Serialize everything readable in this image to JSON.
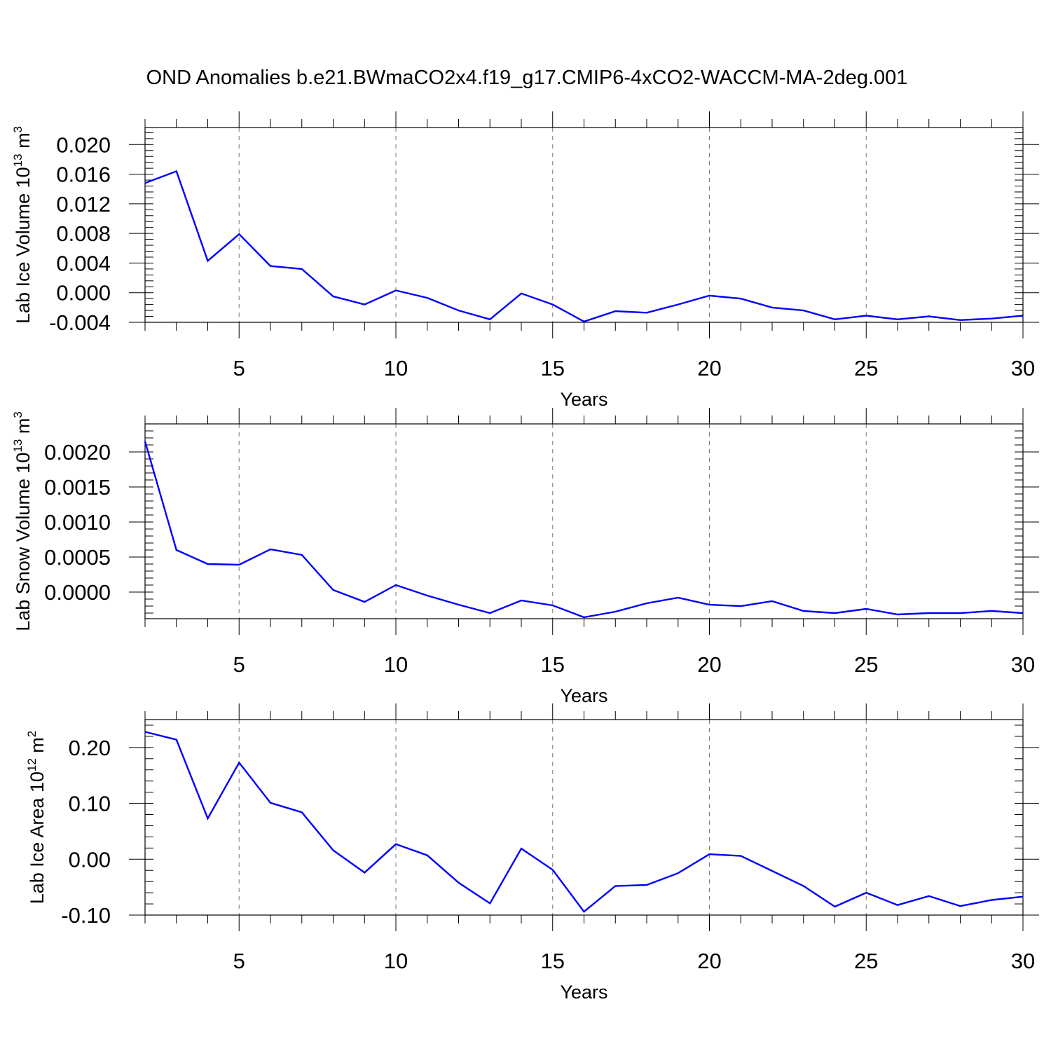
{
  "title": "OND Anomalies b.e21.BWmaCO2x4.f19_g17.CMIP6-4xCO2-WACCM-MA-2deg.001",
  "colors": {
    "series": "#0000ff",
    "axis": "#000000",
    "grid": "#777777"
  },
  "chart_data": [
    {
      "type": "line",
      "ylabel_main": "Lab Ice Volume 10",
      "ylabel_exp": "13",
      "ylabel_unit": " m",
      "ylabel_unit_exp": "3",
      "xlabel": "Years",
      "xlim": [
        2,
        30
      ],
      "ylim": [
        -0.004,
        0.0223
      ],
      "yticks": [
        -0.004,
        0.0,
        0.004,
        0.008,
        0.012,
        0.016,
        0.02
      ],
      "ytick_labels": [
        "-0.004",
        "0.000",
        "0.004",
        "0.008",
        "0.012",
        "0.016",
        "0.020"
      ],
      "yminor_step": 0.0008,
      "xticks": [
        5,
        10,
        15,
        20,
        25,
        30
      ],
      "xtick_labels": [
        "5",
        "10",
        "15",
        "20",
        "25",
        "30"
      ],
      "grid": "vertical dashed at major x ticks",
      "x": [
        2,
        3,
        4,
        5,
        6,
        7,
        8,
        9,
        10,
        11,
        12,
        13,
        14,
        15,
        16,
        17,
        18,
        19,
        20,
        21,
        22,
        23,
        24,
        25,
        26,
        27,
        28,
        29,
        30
      ],
      "values": [
        0.0148,
        0.0164,
        0.0043,
        0.0079,
        0.0036,
        0.0032,
        -0.0005,
        -0.0016,
        0.0003,
        -0.0007,
        -0.0024,
        -0.0036,
        -0.0001,
        -0.0016,
        -0.0039,
        -0.0025,
        -0.0027,
        -0.0016,
        -0.0004,
        -0.0008,
        -0.002,
        -0.0024,
        -0.0036,
        -0.0031,
        -0.0036,
        -0.0032,
        -0.0037,
        -0.0035,
        -0.0031
      ]
    },
    {
      "type": "line",
      "ylabel_main": "Lab Snow Volume 10",
      "ylabel_exp": "13",
      "ylabel_unit": " m",
      "ylabel_unit_exp": "3",
      "xlabel": "Years",
      "xlim": [
        2,
        30
      ],
      "ylim": [
        -0.00038,
        0.0024
      ],
      "yticks": [
        0.0,
        0.0005,
        0.001,
        0.0015,
        0.002
      ],
      "ytick_labels": [
        "0.0000",
        "0.0005",
        "0.0010",
        "0.0015",
        "0.0020"
      ],
      "yminor_step": 0.0001,
      "xticks": [
        5,
        10,
        15,
        20,
        25,
        30
      ],
      "xtick_labels": [
        "5",
        "10",
        "15",
        "20",
        "25",
        "30"
      ],
      "grid": "vertical dashed at major x ticks",
      "x": [
        2,
        3,
        4,
        5,
        6,
        7,
        8,
        9,
        10,
        11,
        12,
        13,
        14,
        15,
        16,
        17,
        18,
        19,
        20,
        21,
        22,
        23,
        24,
        25,
        26,
        27,
        28,
        29,
        30
      ],
      "values": [
        0.00215,
        0.0006,
        0.0004,
        0.00039,
        0.00061,
        0.00053,
        3e-05,
        -0.00014,
        0.0001,
        -5e-05,
        -0.00018,
        -0.0003,
        -0.00012,
        -0.00019,
        -0.00036,
        -0.00028,
        -0.00016,
        -8e-05,
        -0.00018,
        -0.0002,
        -0.00013,
        -0.00027,
        -0.0003,
        -0.00024,
        -0.00032,
        -0.0003,
        -0.0003,
        -0.00027,
        -0.0003
      ]
    },
    {
      "type": "line",
      "ylabel_main": "Lab Ice Area 10",
      "ylabel_exp": "12",
      "ylabel_unit": " m",
      "ylabel_unit_exp": "2",
      "xlabel": "Years",
      "xlim": [
        2,
        30
      ],
      "ylim": [
        -0.1,
        0.25
      ],
      "yticks": [
        -0.1,
        0.0,
        0.1,
        0.2
      ],
      "ytick_labels": [
        "-0.10",
        "0.00",
        "0.10",
        "0.20"
      ],
      "yminor_step": 0.02,
      "xticks": [
        5,
        10,
        15,
        20,
        25,
        30
      ],
      "xtick_labels": [
        "5",
        "10",
        "15",
        "20",
        "25",
        "30"
      ],
      "grid": "vertical dashed at major x ticks",
      "x": [
        2,
        3,
        4,
        5,
        6,
        7,
        8,
        9,
        10,
        11,
        12,
        13,
        14,
        15,
        16,
        17,
        18,
        19,
        20,
        21,
        22,
        23,
        24,
        25,
        26,
        27,
        28,
        29,
        30
      ],
      "values": [
        0.228,
        0.214,
        0.073,
        0.173,
        0.101,
        0.084,
        0.016,
        -0.024,
        0.027,
        0.007,
        -0.042,
        -0.079,
        0.019,
        -0.019,
        -0.094,
        -0.048,
        -0.046,
        -0.025,
        0.009,
        0.006,
        -0.021,
        -0.048,
        -0.085,
        -0.06,
        -0.082,
        -0.066,
        -0.084,
        -0.073,
        -0.067
      ]
    }
  ]
}
